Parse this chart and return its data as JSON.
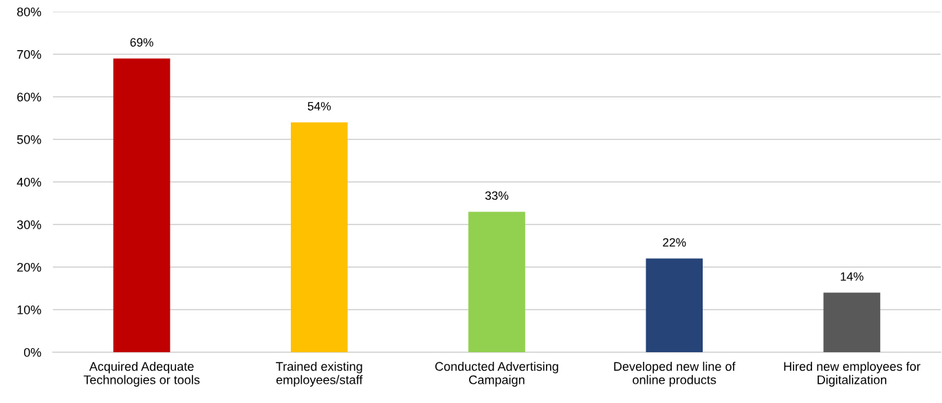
{
  "chart_data": {
    "type": "bar",
    "categories": [
      "Acquired Adequate\nTechnologies or tools",
      "Trained existing\nemployees/staff",
      "Conducted Advertising\nCampaign",
      "Developed new line of\nonline products",
      "Hired new employees for\nDigitalization"
    ],
    "values": [
      69,
      54,
      33,
      22,
      14
    ],
    "colors": [
      "#c00000",
      "#ffc000",
      "#92d050",
      "#264478",
      "#595959"
    ],
    "value_labels": [
      "69%",
      "54%",
      "33%",
      "22%",
      "14%"
    ],
    "ylim": [
      0,
      80
    ],
    "yticks": [
      {
        "value": 0,
        "label": "0%"
      },
      {
        "value": 10,
        "label": "10%"
      },
      {
        "value": 20,
        "label": "20%"
      },
      {
        "value": 30,
        "label": "30%"
      },
      {
        "value": 40,
        "label": "40%"
      },
      {
        "value": 50,
        "label": "50%"
      },
      {
        "value": 60,
        "label": "60%"
      },
      {
        "value": 70,
        "label": "70%"
      },
      {
        "value": 80,
        "label": "80%"
      }
    ],
    "grid": "y",
    "legend": false
  }
}
